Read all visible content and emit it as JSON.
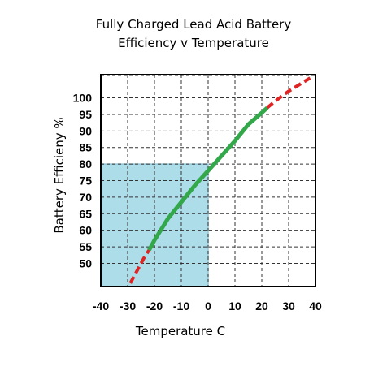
{
  "chart_data": {
    "type": "line",
    "title": "Fully Charged Lead Acid Battery",
    "subtitle": "Efficiency v Temperature",
    "xlabel": "Temperature  C",
    "ylabel": "Battery Efficieny %",
    "xlim": [
      -40,
      40
    ],
    "ylim": [
      43,
      107
    ],
    "x_ticks": [
      -40,
      -30,
      -20,
      -10,
      0,
      10,
      20,
      30,
      40
    ],
    "y_ticks": [
      50,
      55,
      60,
      65,
      70,
      75,
      80,
      85,
      90,
      95,
      100
    ],
    "grid": true,
    "highlight_region": {
      "x": [
        -40,
        0
      ],
      "y": [
        43,
        80
      ],
      "color": "#aeddea"
    },
    "series": [
      {
        "style": "dashed",
        "color": "#e02424",
        "x": [
          -29,
          -26,
          -24,
          -22
        ],
        "y": [
          44,
          48.5,
          51.5,
          54
        ]
      },
      {
        "style": "solid",
        "color": "#33a84a",
        "x": [
          -22,
          -20,
          -15,
          -10,
          -5,
          0,
          5,
          10,
          15,
          20,
          22
        ],
        "y": [
          54,
          57,
          63.5,
          68.5,
          73.5,
          78,
          82.5,
          87,
          92,
          95.5,
          97
        ]
      },
      {
        "style": "dashed",
        "color": "#e02424",
        "x": [
          22,
          25,
          30,
          35,
          38
        ],
        "y": [
          97,
          99,
          102,
          104.5,
          106
        ]
      }
    ],
    "colors": {
      "grid": "#333333",
      "frame": "#000000"
    }
  }
}
